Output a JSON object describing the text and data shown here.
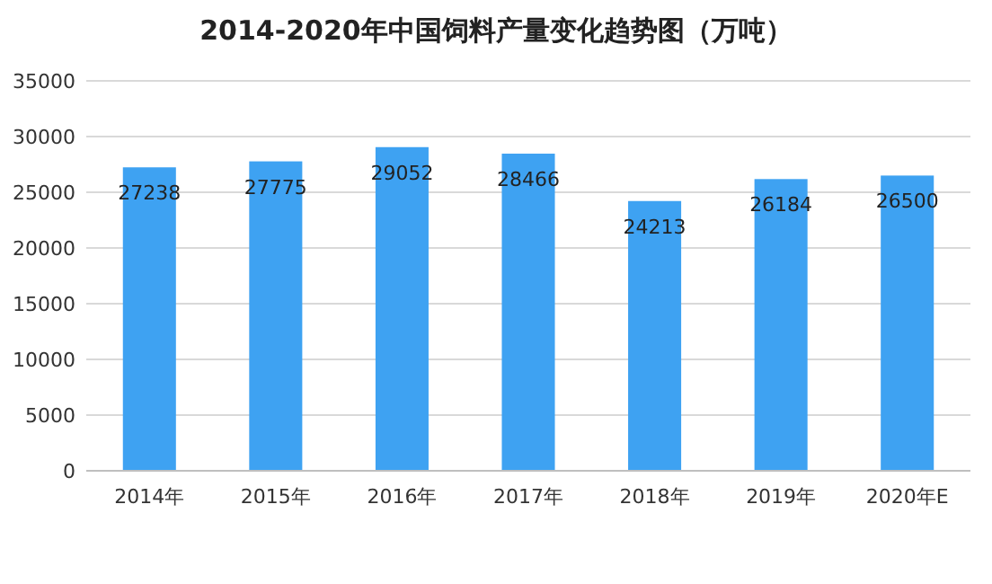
{
  "chart_data": {
    "type": "bar",
    "title": "2014-2020年中国饲料产量变化趋势图（万吨）",
    "categories": [
      "2014年",
      "2015年",
      "2016年",
      "2017年",
      "2018年",
      "2019年",
      "2020年E"
    ],
    "values": [
      27238,
      27775,
      29052,
      28466,
      24213,
      26184,
      26500
    ],
    "color": "#3ea2f2",
    "ylim": [
      0,
      35000
    ],
    "yticks": [
      0,
      5000,
      10000,
      15000,
      20000,
      25000,
      30000,
      35000
    ],
    "grid": "y",
    "data_labels": true
  }
}
